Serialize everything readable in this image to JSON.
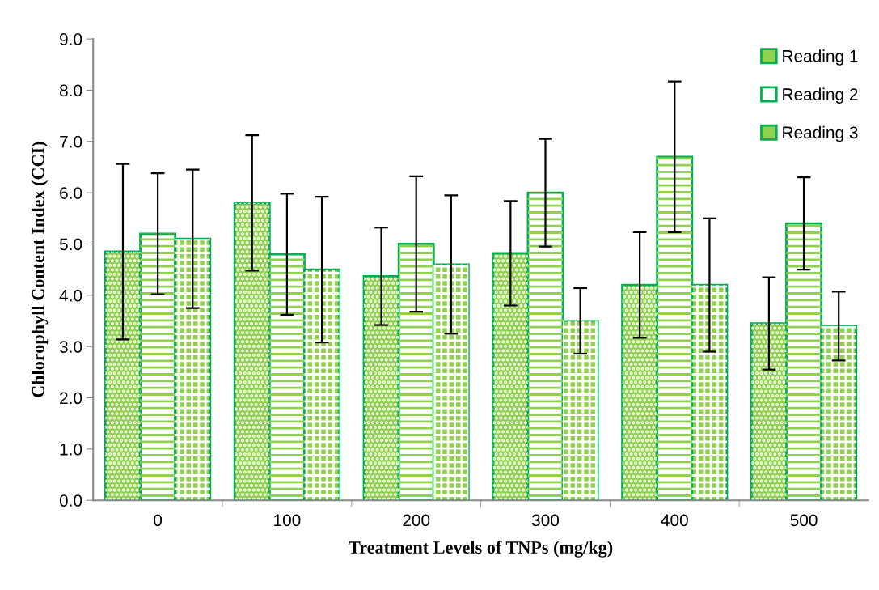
{
  "chart_data": {
    "type": "bar",
    "xlabel": "Treatment Levels of TNPs (mg/kg)",
    "ylabel": "Chlorophyll Content Index (CCI)",
    "categories": [
      "0",
      "100",
      "200",
      "300",
      "400",
      "500"
    ],
    "series": [
      {
        "name": "Reading 1",
        "color": "#00b050",
        "values": [
          4.85,
          5.8,
          4.37,
          4.82,
          4.2,
          3.45
        ],
        "errors": [
          1.71,
          1.32,
          0.95,
          1.02,
          1.03,
          0.9
        ]
      },
      {
        "name": "Reading 2",
        "color": "#00b050",
        "values": [
          5.2,
          4.8,
          5.0,
          6.0,
          6.7,
          5.4
        ],
        "errors": [
          1.18,
          1.18,
          1.32,
          1.05,
          1.47,
          0.9
        ]
      },
      {
        "name": "Reading 3",
        "color": "#00b050",
        "values": [
          5.1,
          4.5,
          4.6,
          3.5,
          4.2,
          3.4
        ],
        "errors": [
          1.35,
          1.42,
          1.35,
          0.64,
          1.3,
          0.67
        ]
      }
    ],
    "ylim": [
      0,
      9
    ],
    "yticks": [
      {
        "value": 0,
        "label": "0.0"
      },
      {
        "value": 1,
        "label": "1.0"
      },
      {
        "value": 2,
        "label": "2.0"
      },
      {
        "value": 3,
        "label": "3.0"
      },
      {
        "value": 4,
        "label": "4.0"
      },
      {
        "value": 5,
        "label": "5.0"
      },
      {
        "value": 6,
        "label": "6.0"
      },
      {
        "value": 7,
        "label": "7.0"
      },
      {
        "value": 8,
        "label": "8.0"
      },
      {
        "value": 9,
        "label": "9.0"
      }
    ],
    "grid": false,
    "legend": "top right"
  }
}
